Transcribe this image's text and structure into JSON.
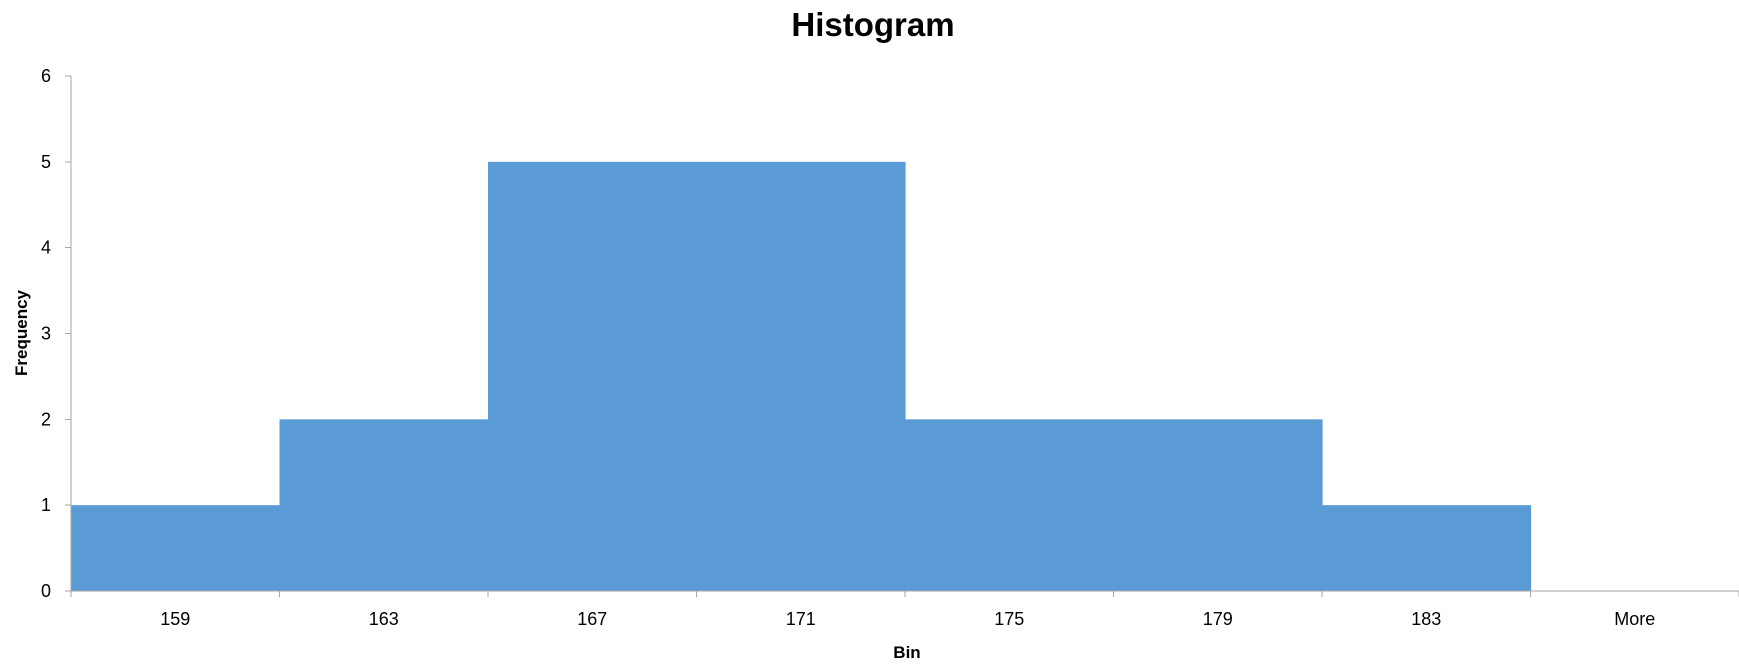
{
  "chart_data": {
    "type": "bar",
    "title": "Histogram",
    "xlabel": "Bin",
    "ylabel": "Frequency",
    "categories": [
      "159",
      "163",
      "167",
      "171",
      "175",
      "179",
      "183",
      "More"
    ],
    "values": [
      1,
      2,
      5,
      5,
      2,
      2,
      1,
      0
    ],
    "ylim": [
      0,
      6
    ],
    "yticks": [
      "0",
      "1",
      "2",
      "3",
      "4",
      "5",
      "6"
    ],
    "grid": false,
    "legend": "none",
    "bar_gap": 0,
    "bar_color": "#5b9bd5",
    "axis_color": "#a6a6a6"
  }
}
